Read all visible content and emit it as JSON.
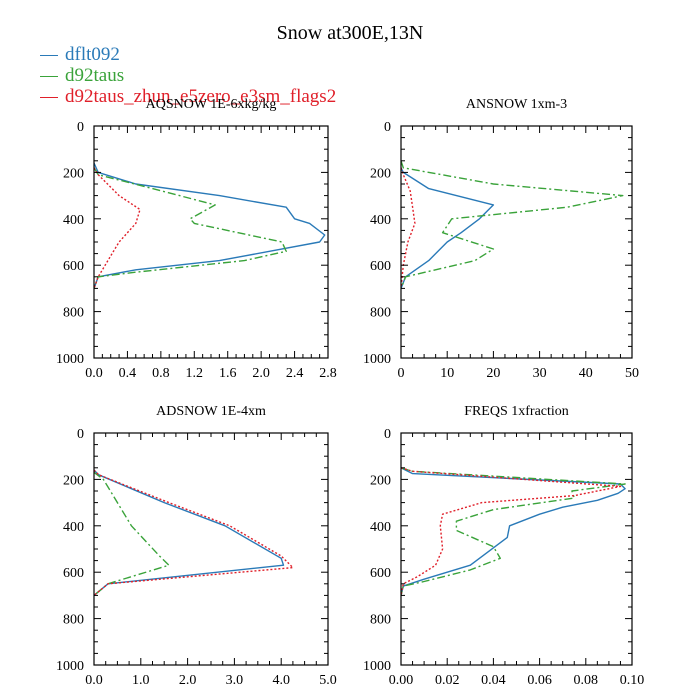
{
  "title": "Snow at300E,13N",
  "legend": [
    {
      "label": "dflt092",
      "color": "#2a7ab8",
      "dash": "solid"
    },
    {
      "label": "d92taus",
      "color": "#3aa33a",
      "dash": "dashed"
    },
    {
      "label": "d92taus_zhun_e5zero_e3sm_flags2",
      "color": "#e0202a",
      "dash": "dotted"
    }
  ],
  "chart_data": [
    {
      "type": "line",
      "title": "AQSNOW  1E-6xkg/kg",
      "xlim": [
        0,
        2.8
      ],
      "xticks": [
        0,
        0.4,
        0.8,
        1.2,
        1.6,
        2.0,
        2.4,
        2.8
      ],
      "xticklabels": [
        "0.0",
        "0.4",
        "0.8",
        "1.2",
        "1.6",
        "2.0",
        "2.4",
        "2.8"
      ],
      "ylim": [
        0,
        1000
      ],
      "yticks": [
        0,
        200,
        400,
        600,
        800,
        1000
      ],
      "yticklabels": [
        "0",
        "200",
        "400",
        "600",
        "800",
        "1000"
      ],
      "y_inverted": true,
      "series": [
        {
          "name": "dflt092",
          "x": [
            0,
            0.05,
            0.5,
            1.5,
            2.3,
            2.4,
            2.58,
            2.76,
            2.7,
            1.5,
            0.5,
            0.05,
            0
          ],
          "y": [
            160,
            200,
            250,
            300,
            350,
            400,
            420,
            470,
            500,
            580,
            620,
            650,
            700
          ]
        },
        {
          "name": "d92taus",
          "x": [
            0,
            0.05,
            0.7,
            1.45,
            1.15,
            1.2,
            2.25,
            2.3,
            1.8,
            0.5,
            0.05,
            0
          ],
          "y": [
            180,
            210,
            270,
            340,
            400,
            420,
            500,
            540,
            580,
            630,
            650,
            700
          ]
        },
        {
          "name": "d92taus_zhun_e5zero_e3sm_flags2",
          "x": [
            0,
            0.05,
            0.3,
            0.55,
            0.5,
            0.3,
            0.2,
            0.05,
            0
          ],
          "y": [
            180,
            210,
            300,
            360,
            420,
            500,
            560,
            650,
            700
          ]
        }
      ]
    },
    {
      "type": "line",
      "title": "ANSNOW  1xm-3",
      "xlim": [
        0,
        50
      ],
      "xticks": [
        0,
        10,
        20,
        30,
        40,
        50
      ],
      "xticklabels": [
        "0",
        "10",
        "20",
        "30",
        "40",
        "50"
      ],
      "ylim": [
        0,
        1000
      ],
      "yticks": [
        0,
        200,
        400,
        600,
        800,
        1000
      ],
      "yticklabels": [
        "0",
        "200",
        "400",
        "600",
        "800",
        "1000"
      ],
      "y_inverted": true,
      "series": [
        {
          "name": "dflt092",
          "x": [
            0,
            0.5,
            6,
            20,
            17,
            13,
            10,
            6,
            1,
            0
          ],
          "y": [
            180,
            200,
            270,
            340,
            400,
            460,
            500,
            580,
            650,
            700
          ]
        },
        {
          "name": "d92taus",
          "x": [
            0,
            0.5,
            20,
            48,
            36,
            11,
            9,
            20,
            16,
            1,
            0
          ],
          "y": [
            150,
            180,
            250,
            300,
            350,
            400,
            460,
            530,
            580,
            650,
            700
          ]
        },
        {
          "name": "d92taus_zhun_e5zero_e3sm_flags2",
          "x": [
            0,
            0.5,
            2,
            2.5,
            3,
            1.5,
            0.5,
            0
          ],
          "y": [
            180,
            210,
            280,
            350,
            420,
            500,
            600,
            700
          ]
        }
      ]
    },
    {
      "type": "line",
      "title": "ADSNOW  1E-4xm",
      "xlim": [
        0,
        5.0
      ],
      "xticks": [
        0,
        1.0,
        2.0,
        3.0,
        4.0,
        5.0
      ],
      "xticklabels": [
        "0.0",
        "1.0",
        "2.0",
        "3.0",
        "4.0",
        "5.0"
      ],
      "ylim": [
        0,
        1000
      ],
      "yticks": [
        0,
        200,
        400,
        600,
        800,
        1000
      ],
      "yticklabels": [
        "0",
        "200",
        "400",
        "600",
        "800",
        "1000"
      ],
      "y_inverted": true,
      "series": [
        {
          "name": "dflt092",
          "x": [
            0,
            0.1,
            1.5,
            2.8,
            4.0,
            4.05,
            0.3,
            0
          ],
          "y": [
            160,
            180,
            300,
            400,
            540,
            570,
            650,
            700
          ]
        },
        {
          "name": "d92taus",
          "x": [
            0,
            0.2,
            0.8,
            1.4,
            1.6,
            0.3,
            0
          ],
          "y": [
            170,
            200,
            400,
            530,
            570,
            650,
            700
          ]
        },
        {
          "name": "d92taus_zhun_e5zero_e3sm_flags2",
          "x": [
            0,
            0.1,
            1.6,
            2.9,
            4.0,
            4.25,
            0.3,
            0
          ],
          "y": [
            160,
            180,
            300,
            400,
            530,
            580,
            650,
            700
          ]
        }
      ]
    },
    {
      "type": "line",
      "title": "FREQS  1xfraction",
      "xlim": [
        0,
        0.1
      ],
      "xticks": [
        0,
        0.02,
        0.04,
        0.06,
        0.08,
        0.1
      ],
      "xticklabels": [
        "0.00",
        "0.02",
        "0.04",
        "0.06",
        "0.08",
        "0.10"
      ],
      "ylim": [
        0,
        1000
      ],
      "yticks": [
        0,
        200,
        400,
        600,
        800,
        1000
      ],
      "yticklabels": [
        "0",
        "200",
        "400",
        "600",
        "800",
        "1000"
      ],
      "y_inverted": true,
      "series": [
        {
          "name": "dflt092",
          "x": [
            0,
            0.005,
            0.095,
            0.097,
            0.094,
            0.085,
            0.07,
            0.06,
            0.047,
            0.046,
            0.03,
            0.01,
            0.001,
            0
          ],
          "y": [
            150,
            175,
            220,
            240,
            260,
            290,
            320,
            350,
            400,
            450,
            570,
            630,
            660,
            700
          ]
        },
        {
          "name": "d92taus",
          "x": [
            0,
            0.005,
            0.097,
            0.074,
            0.075,
            0.04,
            0.024,
            0.024,
            0.04,
            0.043,
            0.03,
            0.01,
            0.001,
            0
          ],
          "y": [
            150,
            165,
            220,
            250,
            280,
            330,
            380,
            420,
            490,
            540,
            590,
            640,
            660,
            700
          ]
        },
        {
          "name": "d92taus_zhun_e5zero_e3sm_flags2",
          "x": [
            0,
            0.005,
            0.095,
            0.075,
            0.035,
            0.018,
            0.017,
            0.018,
            0.015,
            0.007,
            0.001,
            0
          ],
          "y": [
            150,
            165,
            230,
            270,
            300,
            350,
            400,
            500,
            570,
            620,
            650,
            700
          ]
        }
      ]
    }
  ]
}
